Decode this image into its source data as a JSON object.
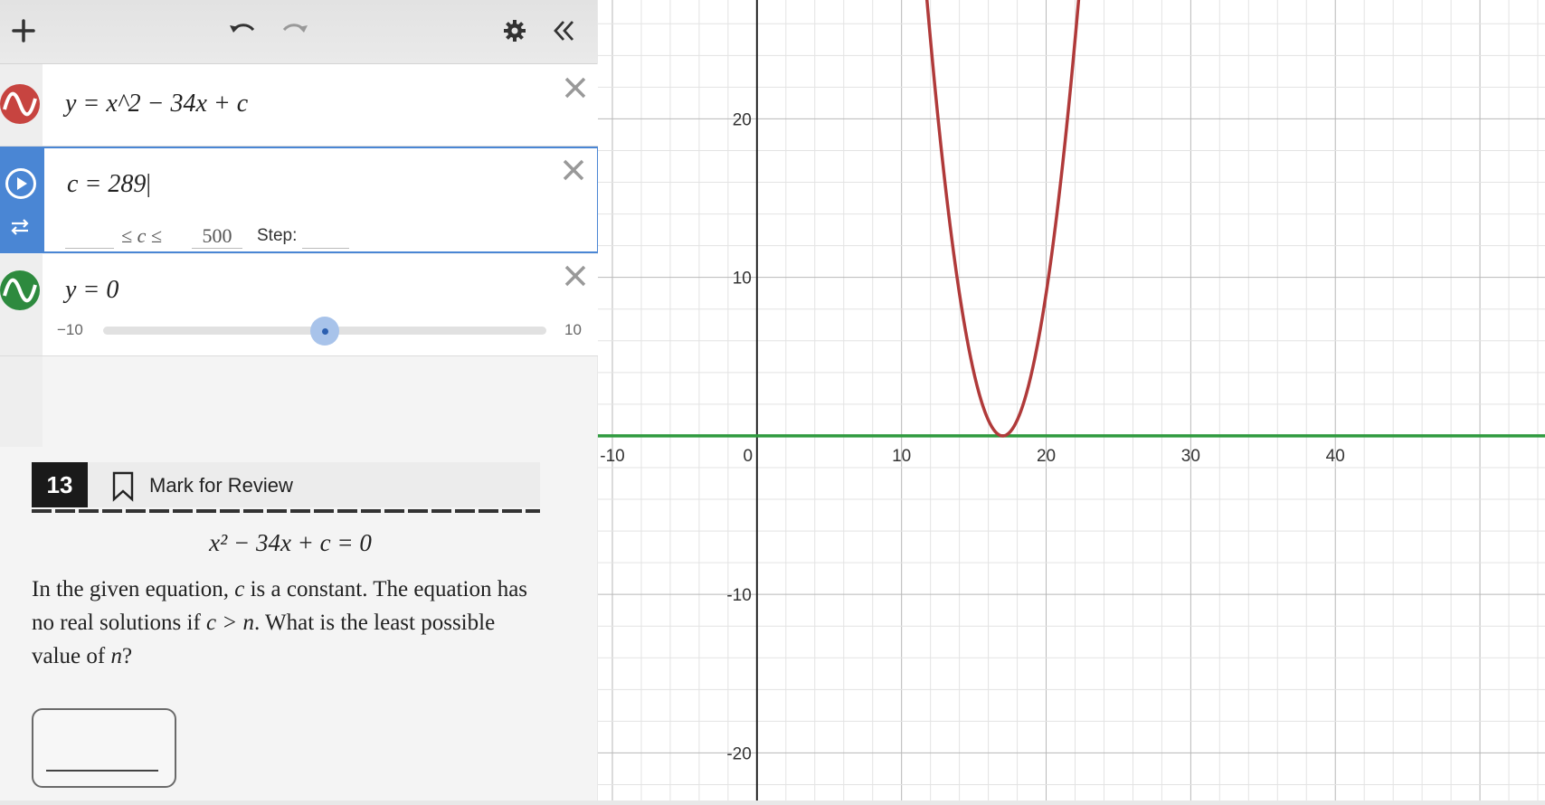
{
  "expressions": [
    {
      "color": "#c74440",
      "icon": "wave-icon",
      "latex": "y = x^2 − 34x + c"
    },
    {
      "color": "#4a86d4",
      "icon": "play-icon",
      "latex": "c = 289",
      "slider": {
        "min_label": "≤ c ≤",
        "max": "500",
        "step_label": "Step:"
      }
    },
    {
      "color": "#2d8a3e",
      "icon": "wave-icon",
      "latex": "y = 0",
      "slider": {
        "min": "−10",
        "max": "10",
        "value": 0
      }
    }
  ],
  "question": {
    "number": "13",
    "mark_label": "Mark for Review",
    "equation": "x² − 34x + c = 0",
    "prompt_parts": [
      "In the given equation, ",
      "c",
      " is a constant. The equation has no real solutions if ",
      "c > n",
      ". What is the least possible value of ",
      "n",
      "?"
    ]
  },
  "colors": {
    "curve": "#b03a3a",
    "line": "#2f9a3f",
    "accent": "#4a86d4"
  },
  "chart_data": {
    "type": "line",
    "x_ticks": [
      "-10",
      "0",
      "10",
      "20",
      "30",
      "40"
    ],
    "y_ticks": [
      "20",
      "10",
      "-10",
      "-20"
    ],
    "xlim": [
      -11,
      54.5
    ],
    "ylim": [
      -23,
      27.5
    ],
    "grid": true,
    "series": [
      {
        "function": "y = x^2 − 34x + 289",
        "color": "#b03a3a"
      },
      {
        "function": "y = 0",
        "color": "#2f9a3f"
      }
    ]
  }
}
